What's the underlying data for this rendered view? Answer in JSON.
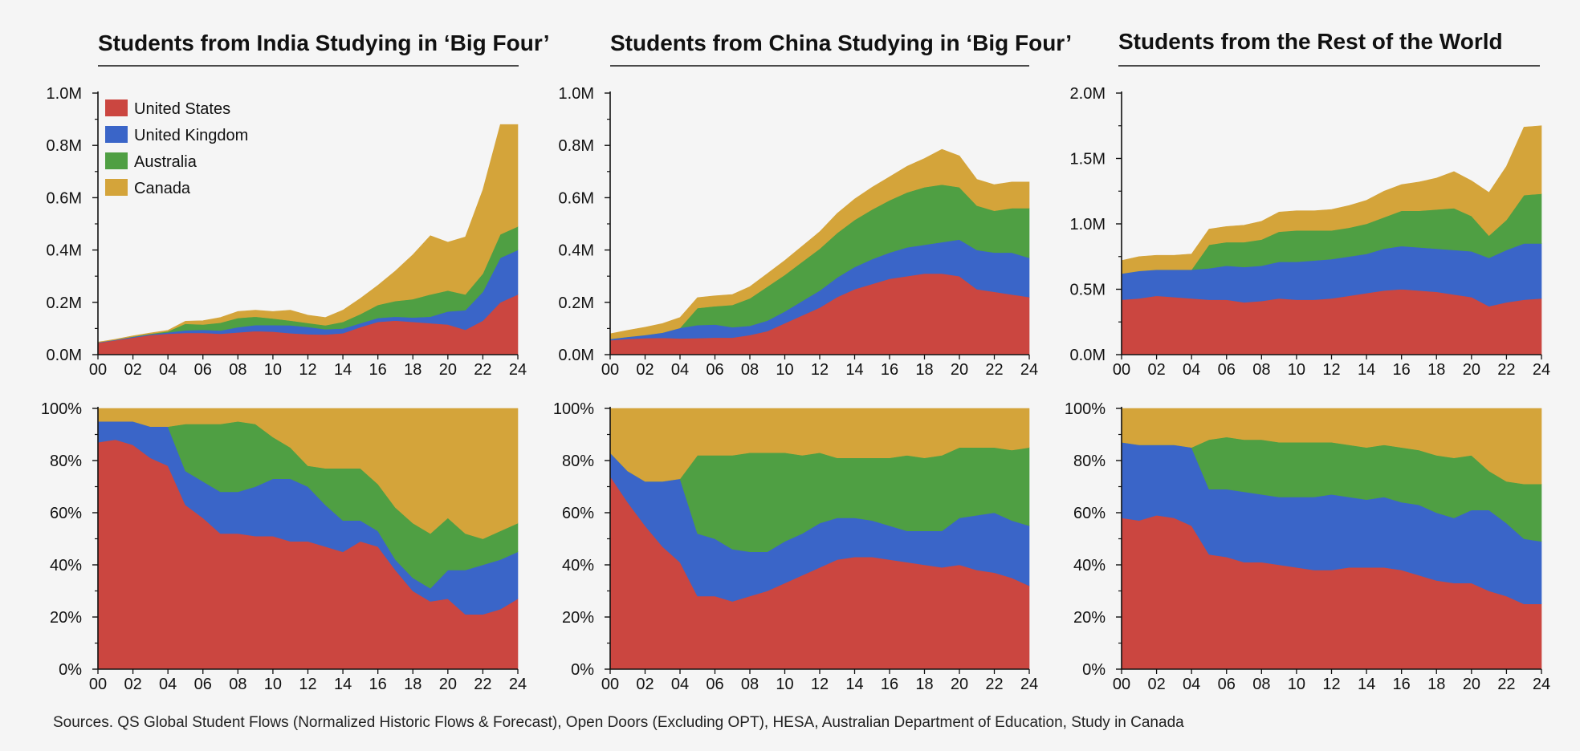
{
  "chart_data": [
    {
      "type": "area",
      "title": "Students from India Studying in ‘Big Four’",
      "stacked": true,
      "x_tick_labels": [
        "00",
        "02",
        "04",
        "06",
        "08",
        "10",
        "12",
        "14",
        "16",
        "18",
        "20",
        "22",
        "24"
      ],
      "y_tick_labels": [
        "0.0M",
        "0.2M",
        "0.4M",
        "0.6M",
        "0.8M",
        "1.0M"
      ],
      "ylim": [
        0,
        1.0
      ],
      "y_unit": "millions of students",
      "legend": {
        "placement": "top-left",
        "entries": [
          "United States",
          "United Kingdom",
          "Australia",
          "Canada"
        ]
      },
      "x": [
        2000,
        2001,
        2002,
        2003,
        2004,
        2005,
        2006,
        2007,
        2008,
        2009,
        2010,
        2011,
        2012,
        2013,
        2014,
        2015,
        2016,
        2017,
        2018,
        2019,
        2020,
        2021,
        2022,
        2023,
        2024
      ],
      "series": [
        {
          "name": "United States",
          "values": [
            0.045,
            0.055,
            0.065,
            0.075,
            0.08,
            0.083,
            0.083,
            0.08,
            0.085,
            0.09,
            0.088,
            0.082,
            0.078,
            0.077,
            0.082,
            0.105,
            0.125,
            0.13,
            0.125,
            0.12,
            0.115,
            0.095,
            0.13,
            0.2,
            0.23
          ]
        },
        {
          "name": "United Kingdom",
          "values": [
            0.002,
            0.002,
            0.003,
            0.003,
            0.005,
            0.01,
            0.012,
            0.012,
            0.02,
            0.023,
            0.025,
            0.03,
            0.028,
            0.02,
            0.018,
            0.015,
            0.015,
            0.015,
            0.017,
            0.025,
            0.05,
            0.075,
            0.11,
            0.17,
            0.17
          ]
        },
        {
          "name": "Australia",
          "values": [
            0.0,
            0.0,
            0.001,
            0.002,
            0.004,
            0.025,
            0.02,
            0.03,
            0.035,
            0.032,
            0.025,
            0.018,
            0.015,
            0.015,
            0.025,
            0.035,
            0.05,
            0.06,
            0.07,
            0.085,
            0.08,
            0.06,
            0.07,
            0.09,
            0.09
          ]
        },
        {
          "name": "Canada",
          "values": [
            0.001,
            0.002,
            0.003,
            0.003,
            0.004,
            0.01,
            0.015,
            0.02,
            0.025,
            0.025,
            0.027,
            0.04,
            0.03,
            0.03,
            0.045,
            0.06,
            0.075,
            0.115,
            0.17,
            0.225,
            0.185,
            0.22,
            0.32,
            0.42,
            0.39
          ]
        }
      ]
    },
    {
      "type": "area",
      "title": "Students from China Studying in ‘Big Four’",
      "stacked": true,
      "x_tick_labels": [
        "00",
        "02",
        "04",
        "06",
        "08",
        "10",
        "12",
        "14",
        "16",
        "18",
        "20",
        "22",
        "24"
      ],
      "y_tick_labels": [
        "0.0M",
        "0.2M",
        "0.4M",
        "0.6M",
        "0.8M",
        "1.0M"
      ],
      "ylim": [
        0,
        1.0
      ],
      "y_unit": "millions of students",
      "x": [
        2000,
        2001,
        2002,
        2003,
        2004,
        2005,
        2006,
        2007,
        2008,
        2009,
        2010,
        2011,
        2012,
        2013,
        2014,
        2015,
        2016,
        2017,
        2018,
        2019,
        2020,
        2021,
        2022,
        2023,
        2024
      ],
      "series": [
        {
          "name": "United States",
          "values": [
            0.055,
            0.06,
            0.063,
            0.064,
            0.062,
            0.063,
            0.065,
            0.065,
            0.075,
            0.09,
            0.12,
            0.15,
            0.18,
            0.22,
            0.25,
            0.27,
            0.29,
            0.3,
            0.31,
            0.31,
            0.3,
            0.25,
            0.24,
            0.23,
            0.22
          ]
        },
        {
          "name": "United Kingdom",
          "values": [
            0.005,
            0.008,
            0.012,
            0.02,
            0.04,
            0.05,
            0.05,
            0.04,
            0.035,
            0.04,
            0.045,
            0.055,
            0.065,
            0.075,
            0.085,
            0.095,
            0.1,
            0.11,
            0.11,
            0.12,
            0.14,
            0.15,
            0.15,
            0.16,
            0.15
          ]
        },
        {
          "name": "Australia",
          "values": [
            0.0,
            0.0,
            0.0,
            0.0,
            0.0,
            0.065,
            0.07,
            0.085,
            0.105,
            0.13,
            0.14,
            0.15,
            0.16,
            0.17,
            0.18,
            0.19,
            0.2,
            0.21,
            0.22,
            0.22,
            0.2,
            0.17,
            0.16,
            0.17,
            0.19
          ]
        },
        {
          "name": "Canada",
          "values": [
            0.02,
            0.025,
            0.03,
            0.035,
            0.04,
            0.04,
            0.04,
            0.04,
            0.045,
            0.05,
            0.055,
            0.06,
            0.065,
            0.075,
            0.08,
            0.085,
            0.09,
            0.1,
            0.11,
            0.135,
            0.12,
            0.1,
            0.1,
            0.1,
            0.1
          ]
        }
      ]
    },
    {
      "type": "area",
      "title": "Students from the Rest of the World",
      "stacked": true,
      "x_tick_labels": [
        "00",
        "02",
        "04",
        "06",
        "08",
        "10",
        "12",
        "14",
        "16",
        "18",
        "20",
        "22",
        "24"
      ],
      "y_tick_labels": [
        "0.0M",
        "0.5M",
        "1.0M",
        "1.5M",
        "2.0M"
      ],
      "ylim": [
        0,
        2.0
      ],
      "y_unit": "millions of students",
      "x": [
        2000,
        2001,
        2002,
        2003,
        2004,
        2005,
        2006,
        2007,
        2008,
        2009,
        2010,
        2011,
        2012,
        2013,
        2014,
        2015,
        2016,
        2017,
        2018,
        2019,
        2020,
        2021,
        2022,
        2023,
        2024
      ],
      "series": [
        {
          "name": "United States",
          "values": [
            0.42,
            0.43,
            0.45,
            0.44,
            0.43,
            0.42,
            0.42,
            0.4,
            0.41,
            0.43,
            0.42,
            0.42,
            0.43,
            0.45,
            0.47,
            0.49,
            0.5,
            0.49,
            0.48,
            0.46,
            0.44,
            0.37,
            0.4,
            0.42,
            0.43
          ]
        },
        {
          "name": "United Kingdom",
          "values": [
            0.2,
            0.21,
            0.2,
            0.21,
            0.22,
            0.24,
            0.26,
            0.27,
            0.27,
            0.28,
            0.29,
            0.3,
            0.3,
            0.3,
            0.3,
            0.32,
            0.33,
            0.33,
            0.33,
            0.34,
            0.35,
            0.37,
            0.4,
            0.43,
            0.42
          ]
        },
        {
          "name": "Australia",
          "values": [
            0.0,
            0.0,
            0.0,
            0.0,
            0.0,
            0.18,
            0.18,
            0.19,
            0.2,
            0.23,
            0.24,
            0.23,
            0.22,
            0.22,
            0.23,
            0.24,
            0.27,
            0.28,
            0.3,
            0.32,
            0.27,
            0.17,
            0.23,
            0.37,
            0.38
          ]
        },
        {
          "name": "Canada",
          "values": [
            0.1,
            0.11,
            0.11,
            0.11,
            0.12,
            0.12,
            0.12,
            0.13,
            0.14,
            0.15,
            0.15,
            0.15,
            0.16,
            0.17,
            0.18,
            0.2,
            0.2,
            0.22,
            0.24,
            0.28,
            0.27,
            0.33,
            0.41,
            0.52,
            0.52
          ]
        }
      ]
    },
    {
      "type": "area",
      "title": "",
      "stacked": true,
      "percent": true,
      "x_tick_labels": [
        "00",
        "02",
        "04",
        "06",
        "08",
        "10",
        "12",
        "14",
        "16",
        "18",
        "20",
        "22",
        "24"
      ],
      "y_tick_labels": [
        "0%",
        "20%",
        "40%",
        "60%",
        "80%",
        "100%"
      ],
      "ylim": [
        0,
        100
      ],
      "x": [
        2000,
        2001,
        2002,
        2003,
        2004,
        2005,
        2006,
        2007,
        2008,
        2009,
        2010,
        2011,
        2012,
        2013,
        2014,
        2015,
        2016,
        2017,
        2018,
        2019,
        2020,
        2021,
        2022,
        2023,
        2024
      ],
      "series": [
        {
          "name": "United States",
          "values": [
            87,
            88,
            86,
            81,
            78,
            63,
            58,
            52,
            52,
            51,
            51,
            49,
            49,
            47,
            45,
            49,
            47,
            38,
            30,
            26,
            27,
            21,
            21,
            23,
            27
          ]
        },
        {
          "name": "United Kingdom",
          "values": [
            8,
            7,
            9,
            12,
            15,
            13,
            14,
            16,
            16,
            19,
            22,
            24,
            21,
            16,
            12,
            8,
            6,
            4,
            5,
            5,
            11,
            17,
            19,
            19,
            18
          ]
        },
        {
          "name": "Australia",
          "values": [
            0,
            0,
            0,
            0,
            0,
            18,
            22,
            26,
            27,
            24,
            16,
            12,
            8,
            14,
            20,
            20,
            18,
            20,
            21,
            21,
            20,
            14,
            10,
            11,
            11
          ]
        },
        {
          "name": "Canada",
          "values": [
            5,
            5,
            5,
            7,
            7,
            6,
            6,
            6,
            5,
            6,
            11,
            15,
            22,
            23,
            23,
            23,
            29,
            38,
            44,
            48,
            42,
            48,
            50,
            47,
            44
          ]
        }
      ]
    },
    {
      "type": "area",
      "title": "",
      "stacked": true,
      "percent": true,
      "x_tick_labels": [
        "00",
        "02",
        "04",
        "06",
        "08",
        "10",
        "12",
        "14",
        "16",
        "18",
        "20",
        "22",
        "24"
      ],
      "y_tick_labels": [
        "0%",
        "20%",
        "40%",
        "60%",
        "80%",
        "100%"
      ],
      "ylim": [
        0,
        100
      ],
      "x": [
        2000,
        2001,
        2002,
        2003,
        2004,
        2005,
        2006,
        2007,
        2008,
        2009,
        2010,
        2011,
        2012,
        2013,
        2014,
        2015,
        2016,
        2017,
        2018,
        2019,
        2020,
        2021,
        2022,
        2023,
        2024
      ],
      "series": [
        {
          "name": "United States",
          "values": [
            74,
            64,
            55,
            47,
            41,
            28,
            28,
            26,
            28,
            30,
            33,
            36,
            39,
            42,
            43,
            43,
            42,
            41,
            40,
            39,
            40,
            38,
            37,
            35,
            32
          ]
        },
        {
          "name": "United Kingdom",
          "values": [
            9,
            12,
            17,
            25,
            32,
            24,
            22,
            20,
            17,
            15,
            16,
            16,
            17,
            16,
            15,
            14,
            13,
            12,
            13,
            14,
            18,
            21,
            23,
            22,
            23
          ]
        },
        {
          "name": "Australia",
          "values": [
            0,
            0,
            0,
            0,
            0,
            30,
            32,
            36,
            38,
            38,
            34,
            30,
            27,
            23,
            23,
            24,
            26,
            29,
            28,
            29,
            27,
            26,
            25,
            27,
            30
          ]
        },
        {
          "name": "Canada",
          "values": [
            17,
            24,
            28,
            28,
            27,
            18,
            18,
            18,
            17,
            17,
            17,
            18,
            17,
            19,
            19,
            19,
            19,
            18,
            19,
            18,
            15,
            15,
            15,
            16,
            15
          ]
        }
      ]
    },
    {
      "type": "area",
      "title": "",
      "stacked": true,
      "percent": true,
      "x_tick_labels": [
        "00",
        "02",
        "04",
        "06",
        "08",
        "10",
        "12",
        "14",
        "16",
        "18",
        "20",
        "22",
        "24"
      ],
      "y_tick_labels": [
        "0%",
        "20%",
        "40%",
        "60%",
        "80%",
        "100%"
      ],
      "ylim": [
        0,
        100
      ],
      "x": [
        2000,
        2001,
        2002,
        2003,
        2004,
        2005,
        2006,
        2007,
        2008,
        2009,
        2010,
        2011,
        2012,
        2013,
        2014,
        2015,
        2016,
        2017,
        2018,
        2019,
        2020,
        2021,
        2022,
        2023,
        2024
      ],
      "series": [
        {
          "name": "United States",
          "values": [
            58,
            57,
            59,
            58,
            55,
            44,
            43,
            41,
            41,
            40,
            39,
            38,
            38,
            39,
            39,
            39,
            38,
            36,
            34,
            33,
            33,
            30,
            28,
            25,
            25
          ]
        },
        {
          "name": "United Kingdom",
          "values": [
            29,
            29,
            27,
            28,
            30,
            25,
            26,
            27,
            26,
            26,
            27,
            28,
            29,
            27,
            26,
            27,
            26,
            27,
            26,
            25,
            28,
            31,
            28,
            25,
            24
          ]
        },
        {
          "name": "Australia",
          "values": [
            0,
            0,
            0,
            0,
            0,
            19,
            20,
            20,
            21,
            21,
            21,
            21,
            20,
            20,
            20,
            20,
            21,
            21,
            22,
            23,
            21,
            15,
            16,
            21,
            22
          ]
        },
        {
          "name": "Canada",
          "values": [
            13,
            14,
            14,
            14,
            15,
            12,
            11,
            12,
            12,
            13,
            13,
            13,
            13,
            14,
            15,
            14,
            15,
            16,
            18,
            19,
            18,
            24,
            28,
            29,
            29
          ]
        }
      ]
    }
  ],
  "series_colors": [
    "#cb4640",
    "#3a65c8",
    "#4f9f43",
    "#d4a43a"
  ],
  "source_text": "Sources. QS Global Student Flows (Normalized Historic Flows & Forecast), Open Doors (Excluding OPT), HESA, Australian Department of Education, Study in Canada"
}
